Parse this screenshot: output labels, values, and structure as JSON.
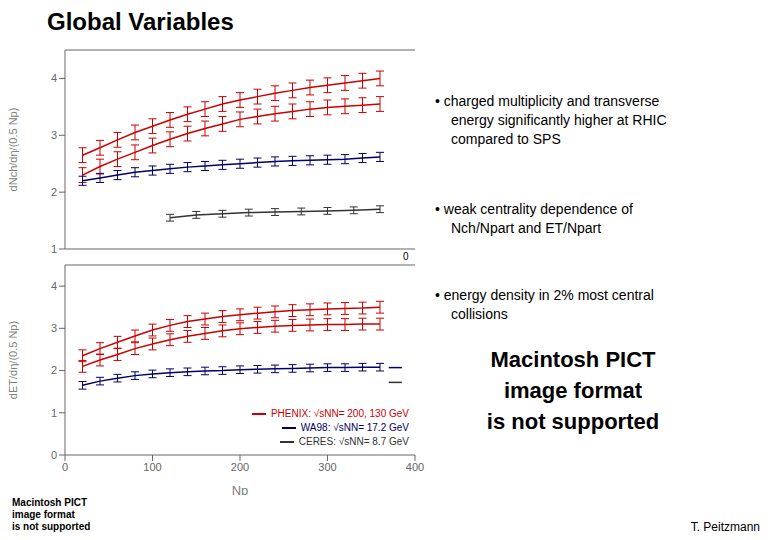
{
  "chart_data": [
    {
      "type": "line",
      "title": "Global Variables",
      "y_label": "dNch/dη/(0.5 Np)",
      "xlim": [
        0,
        400
      ],
      "ylim": [
        1.0,
        4.5
      ],
      "xticks": [
        0,
        100,
        200,
        300,
        400
      ],
      "yticks": [
        1,
        2,
        3,
        4
      ],
      "tick_labels": "y",
      "grid": false,
      "annotations": [
        "0",
        "• charged multiplicity and transverse\nenergy significantly higher at RHIC\ncompared to SPS",
        "• weak centrality dependence of\nNch/Npart and ET/Npart",
        "• energy density in 2% most central\ncollisions",
        "Macintosh PICT\nimage format\nis not supported",
        "Macintosh PICT\nimage format\nis not supported",
        "T. Peitzmann"
      ],
      "series": [
        {
          "color": "#cc0000",
          "x": [
            20,
            40,
            60,
            80,
            100,
            120,
            140,
            160,
            180,
            200,
            220,
            240,
            260,
            280,
            300,
            320,
            340,
            360
          ],
          "values": [
            2.65,
            2.78,
            2.92,
            3.05,
            3.16,
            3.27,
            3.37,
            3.46,
            3.55,
            3.62,
            3.68,
            3.74,
            3.79,
            3.84,
            3.88,
            3.92,
            3.96,
            4.0
          ],
          "error": 0.13
        },
        {
          "color": "#cc0000",
          "x": [
            20,
            40,
            60,
            80,
            100,
            120,
            140,
            160,
            180,
            200,
            220,
            240,
            260,
            280,
            300,
            320,
            340,
            360
          ],
          "values": [
            2.3,
            2.45,
            2.58,
            2.7,
            2.82,
            2.93,
            3.03,
            3.12,
            3.2,
            3.28,
            3.33,
            3.38,
            3.42,
            3.46,
            3.49,
            3.51,
            3.53,
            3.55
          ],
          "error": 0.13
        },
        {
          "color": "#000066",
          "x": [
            20,
            40,
            60,
            80,
            100,
            120,
            140,
            160,
            180,
            200,
            220,
            240,
            260,
            280,
            300,
            320,
            340,
            360
          ],
          "values": [
            2.2,
            2.25,
            2.3,
            2.35,
            2.38,
            2.41,
            2.44,
            2.46,
            2.48,
            2.5,
            2.52,
            2.54,
            2.55,
            2.56,
            2.57,
            2.58,
            2.6,
            2.62
          ],
          "error": 0.08
        },
        {
          "color": "#333333",
          "x": [
            120,
            150,
            180,
            210,
            240,
            270,
            300,
            330,
            360
          ],
          "values": [
            1.55,
            1.6,
            1.62,
            1.64,
            1.65,
            1.66,
            1.67,
            1.68,
            1.7
          ],
          "error": 0.06
        }
      ]
    },
    {
      "type": "line",
      "x_label": "Np",
      "y_label": "dET/dη/(0.5 Np)",
      "xlim": [
        0,
        400
      ],
      "ylim": [
        0.0,
        4.5
      ],
      "xticks": [
        0,
        100,
        200,
        300,
        400
      ],
      "yticks": [
        0,
        1,
        2,
        3,
        4
      ],
      "grid": false,
      "legend": "lower right",
      "series": [
        {
          "name": "PHENIX: √sNN= 200, 130 GeV",
          "color": "#cc0000",
          "x": [
            20,
            40,
            60,
            80,
            100,
            120,
            140,
            160,
            180,
            200,
            220,
            240,
            260,
            280,
            300,
            320,
            340,
            360
          ],
          "values": [
            2.35,
            2.52,
            2.67,
            2.82,
            2.96,
            3.07,
            3.16,
            3.22,
            3.28,
            3.32,
            3.36,
            3.39,
            3.42,
            3.44,
            3.46,
            3.47,
            3.48,
            3.5
          ],
          "error": 0.14
        },
        {
          "name": "PHENIX: √sNN= 200, 130 GeV",
          "color": "#cc0000",
          "x": [
            20,
            40,
            60,
            80,
            100,
            120,
            140,
            160,
            180,
            200,
            220,
            240,
            260,
            280,
            300,
            320,
            340,
            360
          ],
          "values": [
            2.1,
            2.25,
            2.38,
            2.52,
            2.63,
            2.73,
            2.81,
            2.88,
            2.94,
            2.99,
            3.02,
            3.05,
            3.07,
            3.08,
            3.09,
            3.09,
            3.1,
            3.1
          ],
          "error": 0.14
        },
        {
          "name": "WA98: √sNN= 17.2 GeV",
          "color": "#000066",
          "x": [
            20,
            40,
            60,
            80,
            100,
            120,
            140,
            160,
            180,
            200,
            220,
            240,
            260,
            280,
            300,
            320,
            340,
            360
          ],
          "values": [
            1.65,
            1.75,
            1.82,
            1.88,
            1.92,
            1.95,
            1.97,
            1.99,
            2.0,
            2.02,
            2.03,
            2.04,
            2.05,
            2.06,
            2.07,
            2.07,
            2.08,
            2.08
          ],
          "error": 0.09
        },
        {
          "name": "WA98: √sNN= 17.2 GeV",
          "color": "#000066",
          "x": [
            370,
            385
          ],
          "values": [
            2.07,
            2.07
          ]
        },
        {
          "name": "CERES: √sNN= 8.7 GeV",
          "color": "#333333",
          "x": [
            370,
            385
          ],
          "values": [
            1.72,
            1.72
          ]
        }
      ]
    }
  ]
}
